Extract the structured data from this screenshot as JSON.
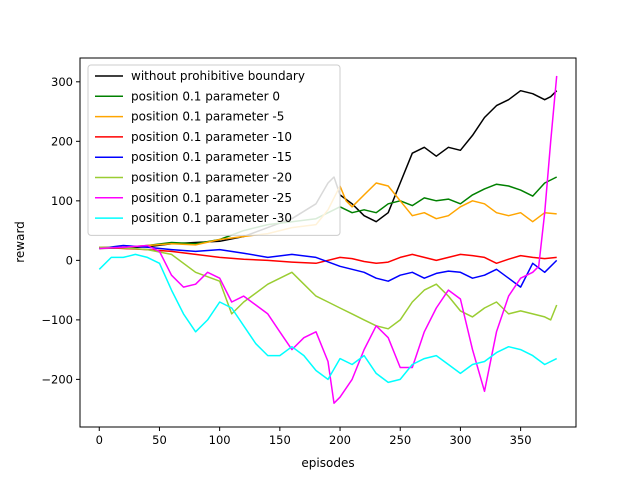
{
  "chart_data": {
    "type": "line",
    "xlabel": "episodes",
    "ylabel": "reward",
    "xlim": [
      -16,
      396
    ],
    "ylim": [
      -280,
      340
    ],
    "xticks": [
      0,
      50,
      100,
      150,
      200,
      250,
      300,
      350
    ],
    "yticks": [
      -200,
      -100,
      0,
      100,
      200,
      300
    ],
    "grid": false,
    "legend_position": "upper-left",
    "series": [
      {
        "name": "without prohibitive boundary",
        "color": "#000000",
        "points": [
          [
            0,
            22
          ],
          [
            20,
            21
          ],
          [
            40,
            23
          ],
          [
            60,
            28
          ],
          [
            80,
            30
          ],
          [
            100,
            32
          ],
          [
            120,
            40
          ],
          [
            140,
            55
          ],
          [
            160,
            70
          ],
          [
            180,
            95
          ],
          [
            190,
            130
          ],
          [
            195,
            140
          ],
          [
            200,
            110
          ],
          [
            210,
            95
          ],
          [
            220,
            75
          ],
          [
            230,
            65
          ],
          [
            240,
            80
          ],
          [
            250,
            130
          ],
          [
            260,
            180
          ],
          [
            270,
            190
          ],
          [
            280,
            175
          ],
          [
            290,
            190
          ],
          [
            300,
            185
          ],
          [
            310,
            210
          ],
          [
            320,
            240
          ],
          [
            330,
            260
          ],
          [
            340,
            270
          ],
          [
            350,
            285
          ],
          [
            360,
            280
          ],
          [
            370,
            270
          ],
          [
            375,
            275
          ],
          [
            380,
            285
          ]
        ]
      },
      {
        "name": "position 0.1 parameter 0",
        "color": "#008000",
        "points": [
          [
            0,
            20
          ],
          [
            20,
            21
          ],
          [
            40,
            25
          ],
          [
            60,
            30
          ],
          [
            80,
            28
          ],
          [
            100,
            35
          ],
          [
            120,
            50
          ],
          [
            140,
            60
          ],
          [
            160,
            65
          ],
          [
            180,
            70
          ],
          [
            200,
            90
          ],
          [
            210,
            80
          ],
          [
            220,
            85
          ],
          [
            230,
            80
          ],
          [
            240,
            95
          ],
          [
            250,
            100
          ],
          [
            260,
            92
          ],
          [
            270,
            105
          ],
          [
            280,
            100
          ],
          [
            290,
            103
          ],
          [
            300,
            95
          ],
          [
            310,
            110
          ],
          [
            320,
            120
          ],
          [
            330,
            128
          ],
          [
            340,
            125
          ],
          [
            350,
            118
          ],
          [
            360,
            108
          ],
          [
            370,
            130
          ],
          [
            380,
            140
          ]
        ]
      },
      {
        "name": "position 0.1 parameter -5",
        "color": "#ffa500",
        "points": [
          [
            0,
            20
          ],
          [
            20,
            22
          ],
          [
            40,
            25
          ],
          [
            60,
            28
          ],
          [
            80,
            26
          ],
          [
            100,
            35
          ],
          [
            120,
            40
          ],
          [
            140,
            45
          ],
          [
            160,
            55
          ],
          [
            180,
            60
          ],
          [
            190,
            85
          ],
          [
            200,
            125
          ],
          [
            205,
            100
          ],
          [
            210,
            90
          ],
          [
            220,
            110
          ],
          [
            230,
            130
          ],
          [
            240,
            125
          ],
          [
            250,
            100
          ],
          [
            260,
            75
          ],
          [
            270,
            80
          ],
          [
            280,
            70
          ],
          [
            290,
            75
          ],
          [
            300,
            90
          ],
          [
            310,
            100
          ],
          [
            320,
            95
          ],
          [
            330,
            80
          ],
          [
            340,
            75
          ],
          [
            350,
            80
          ],
          [
            360,
            65
          ],
          [
            370,
            80
          ],
          [
            380,
            78
          ]
        ]
      },
      {
        "name": "position 0.1 parameter -10",
        "color": "#ff0000",
        "points": [
          [
            0,
            22
          ],
          [
            20,
            20
          ],
          [
            40,
            18
          ],
          [
            60,
            15
          ],
          [
            80,
            10
          ],
          [
            100,
            5
          ],
          [
            120,
            2
          ],
          [
            140,
            0
          ],
          [
            160,
            -3
          ],
          [
            180,
            -5
          ],
          [
            200,
            5
          ],
          [
            210,
            3
          ],
          [
            220,
            -2
          ],
          [
            230,
            -5
          ],
          [
            240,
            -3
          ],
          [
            250,
            5
          ],
          [
            260,
            10
          ],
          [
            270,
            5
          ],
          [
            280,
            0
          ],
          [
            290,
            5
          ],
          [
            300,
            10
          ],
          [
            310,
            8
          ],
          [
            320,
            5
          ],
          [
            330,
            -5
          ],
          [
            340,
            2
          ],
          [
            350,
            8
          ],
          [
            360,
            5
          ],
          [
            370,
            3
          ],
          [
            380,
            5
          ]
        ]
      },
      {
        "name": "position 0.1 parameter -15",
        "color": "#0000ff",
        "points": [
          [
            0,
            20
          ],
          [
            20,
            25
          ],
          [
            40,
            22
          ],
          [
            60,
            18
          ],
          [
            80,
            15
          ],
          [
            100,
            18
          ],
          [
            120,
            12
          ],
          [
            140,
            5
          ],
          [
            160,
            10
          ],
          [
            180,
            5
          ],
          [
            200,
            -10
          ],
          [
            210,
            -15
          ],
          [
            220,
            -20
          ],
          [
            230,
            -30
          ],
          [
            240,
            -35
          ],
          [
            250,
            -25
          ],
          [
            260,
            -20
          ],
          [
            270,
            -30
          ],
          [
            280,
            -22
          ],
          [
            290,
            -18
          ],
          [
            300,
            -20
          ],
          [
            310,
            -30
          ],
          [
            320,
            -25
          ],
          [
            330,
            -15
          ],
          [
            340,
            -30
          ],
          [
            350,
            -45
          ],
          [
            360,
            -5
          ],
          [
            370,
            -20
          ],
          [
            380,
            0
          ]
        ]
      },
      {
        "name": "position 0.1 parameter -20",
        "color": "#9acd32",
        "points": [
          [
            0,
            22
          ],
          [
            20,
            21
          ],
          [
            40,
            18
          ],
          [
            60,
            10
          ],
          [
            80,
            -20
          ],
          [
            100,
            -35
          ],
          [
            110,
            -90
          ],
          [
            120,
            -70
          ],
          [
            140,
            -40
          ],
          [
            160,
            -20
          ],
          [
            170,
            -40
          ],
          [
            180,
            -60
          ],
          [
            190,
            -70
          ],
          [
            200,
            -80
          ],
          [
            210,
            -90
          ],
          [
            220,
            -100
          ],
          [
            230,
            -110
          ],
          [
            240,
            -115
          ],
          [
            250,
            -100
          ],
          [
            260,
            -70
          ],
          [
            270,
            -50
          ],
          [
            280,
            -40
          ],
          [
            290,
            -60
          ],
          [
            300,
            -85
          ],
          [
            310,
            -95
          ],
          [
            320,
            -80
          ],
          [
            330,
            -70
          ],
          [
            340,
            -90
          ],
          [
            350,
            -85
          ],
          [
            360,
            -90
          ],
          [
            370,
            -95
          ],
          [
            375,
            -100
          ],
          [
            380,
            -75
          ]
        ]
      },
      {
        "name": "position 0.1 parameter -25",
        "color": "#ff00ff",
        "points": [
          [
            0,
            20
          ],
          [
            20,
            22
          ],
          [
            40,
            25
          ],
          [
            50,
            15
          ],
          [
            60,
            -25
          ],
          [
            70,
            -45
          ],
          [
            80,
            -40
          ],
          [
            90,
            -20
          ],
          [
            100,
            -30
          ],
          [
            110,
            -70
          ],
          [
            120,
            -60
          ],
          [
            130,
            -75
          ],
          [
            140,
            -90
          ],
          [
            150,
            -120
          ],
          [
            160,
            -150
          ],
          [
            170,
            -130
          ],
          [
            180,
            -120
          ],
          [
            190,
            -170
          ],
          [
            195,
            -240
          ],
          [
            200,
            -230
          ],
          [
            210,
            -200
          ],
          [
            220,
            -150
          ],
          [
            230,
            -110
          ],
          [
            240,
            -130
          ],
          [
            250,
            -180
          ],
          [
            260,
            -180
          ],
          [
            270,
            -120
          ],
          [
            280,
            -80
          ],
          [
            290,
            -50
          ],
          [
            300,
            -65
          ],
          [
            310,
            -150
          ],
          [
            320,
            -220
          ],
          [
            330,
            -120
          ],
          [
            340,
            -60
          ],
          [
            350,
            -30
          ],
          [
            360,
            -20
          ],
          [
            365,
            -10
          ],
          [
            370,
            80
          ],
          [
            375,
            200
          ],
          [
            380,
            310
          ]
        ]
      },
      {
        "name": "position 0.1 parameter -30",
        "color": "#00ffff",
        "points": [
          [
            0,
            -15
          ],
          [
            10,
            5
          ],
          [
            20,
            5
          ],
          [
            30,
            10
          ],
          [
            40,
            5
          ],
          [
            50,
            -5
          ],
          [
            60,
            -50
          ],
          [
            70,
            -90
          ],
          [
            80,
            -120
          ],
          [
            90,
            -100
          ],
          [
            100,
            -70
          ],
          [
            110,
            -80
          ],
          [
            120,
            -110
          ],
          [
            130,
            -140
          ],
          [
            140,
            -160
          ],
          [
            150,
            -160
          ],
          [
            160,
            -145
          ],
          [
            170,
            -160
          ],
          [
            180,
            -185
          ],
          [
            190,
            -200
          ],
          [
            200,
            -165
          ],
          [
            210,
            -175
          ],
          [
            220,
            -160
          ],
          [
            230,
            -190
          ],
          [
            240,
            -205
          ],
          [
            250,
            -200
          ],
          [
            260,
            -175
          ],
          [
            270,
            -165
          ],
          [
            280,
            -160
          ],
          [
            290,
            -175
          ],
          [
            300,
            -190
          ],
          [
            310,
            -175
          ],
          [
            320,
            -170
          ],
          [
            330,
            -155
          ],
          [
            340,
            -145
          ],
          [
            350,
            -150
          ],
          [
            360,
            -160
          ],
          [
            370,
            -175
          ],
          [
            380,
            -165
          ]
        ]
      }
    ]
  }
}
